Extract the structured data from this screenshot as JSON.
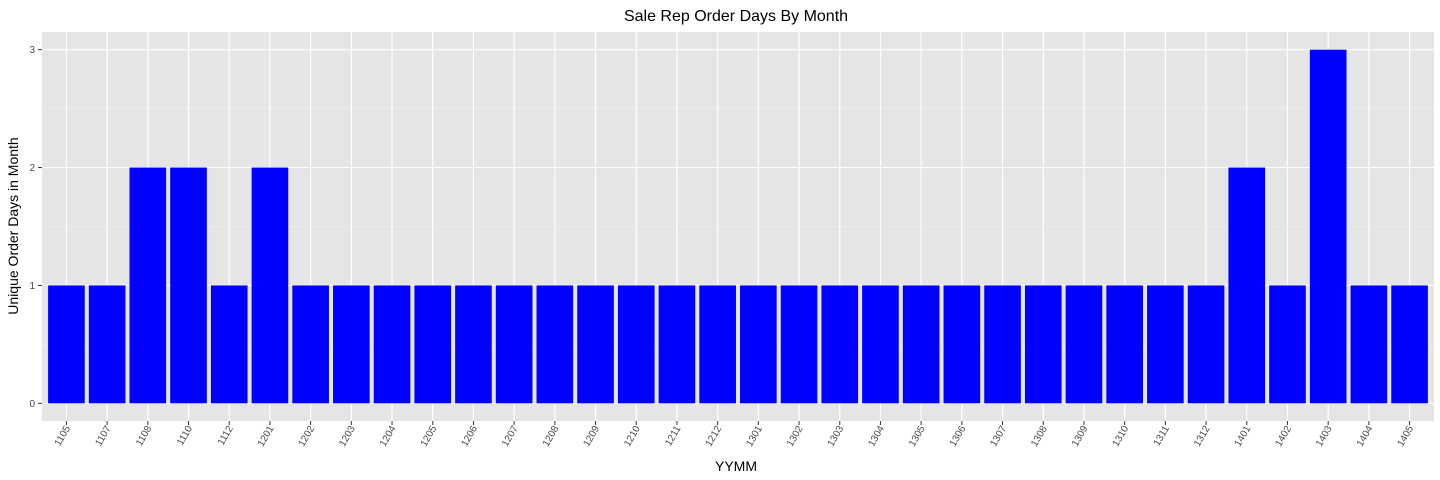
{
  "chart_data": {
    "type": "bar",
    "title": "Sale Rep Order Days By Month",
    "xlabel": "YYMM",
    "ylabel": "Unique Order Days in Month",
    "categories": [
      "1105",
      "1107",
      "1108",
      "1110",
      "1112",
      "1201",
      "1202",
      "1203",
      "1204",
      "1205",
      "1206",
      "1207",
      "1208",
      "1209",
      "1210",
      "1211",
      "1212",
      "1301",
      "1302",
      "1303",
      "1304",
      "1305",
      "1306",
      "1307",
      "1308",
      "1309",
      "1310",
      "1311",
      "1312",
      "1401",
      "1402",
      "1403",
      "1404",
      "1405"
    ],
    "values": [
      1,
      1,
      2,
      2,
      1,
      2,
      1,
      1,
      1,
      1,
      1,
      1,
      1,
      1,
      1,
      1,
      1,
      1,
      1,
      1,
      1,
      1,
      1,
      1,
      1,
      1,
      1,
      1,
      1,
      2,
      1,
      3,
      1,
      1
    ],
    "yticks": [
      0,
      1,
      2,
      3
    ],
    "ylim": [
      -0.15,
      3.15
    ],
    "grid": true,
    "colors": {
      "bar": "#0000FF",
      "panel": "#E5E5E5",
      "grid_major": "#FFFFFF",
      "grid_minor": "#F2F2F2",
      "tick_label": "#4D4D4D"
    }
  }
}
